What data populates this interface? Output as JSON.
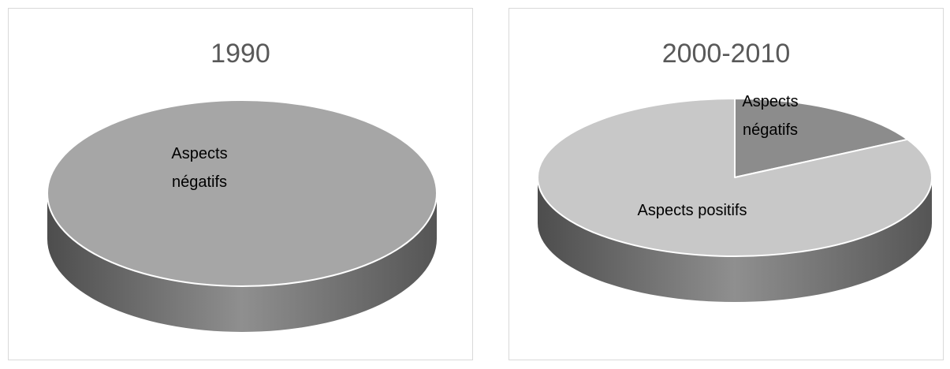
{
  "chart_data": [
    {
      "type": "pie",
      "title": "1990",
      "slices": [
        {
          "label": "Aspects négatifs",
          "label_lines": [
            "Aspects",
            "négatifs"
          ],
          "value": 100,
          "color": "#a6a6a6"
        }
      ]
    },
    {
      "type": "pie",
      "title": "2000-2010",
      "slices": [
        {
          "label": "Aspects négatifs",
          "label_lines": [
            "Aspects",
            "négatifs"
          ],
          "value": 17,
          "color": "#8c8c8c"
        },
        {
          "label": "Aspects positifs",
          "label_lines": [
            "Aspects positifs"
          ],
          "value": 83,
          "color": "#c8c8c8"
        }
      ]
    }
  ]
}
